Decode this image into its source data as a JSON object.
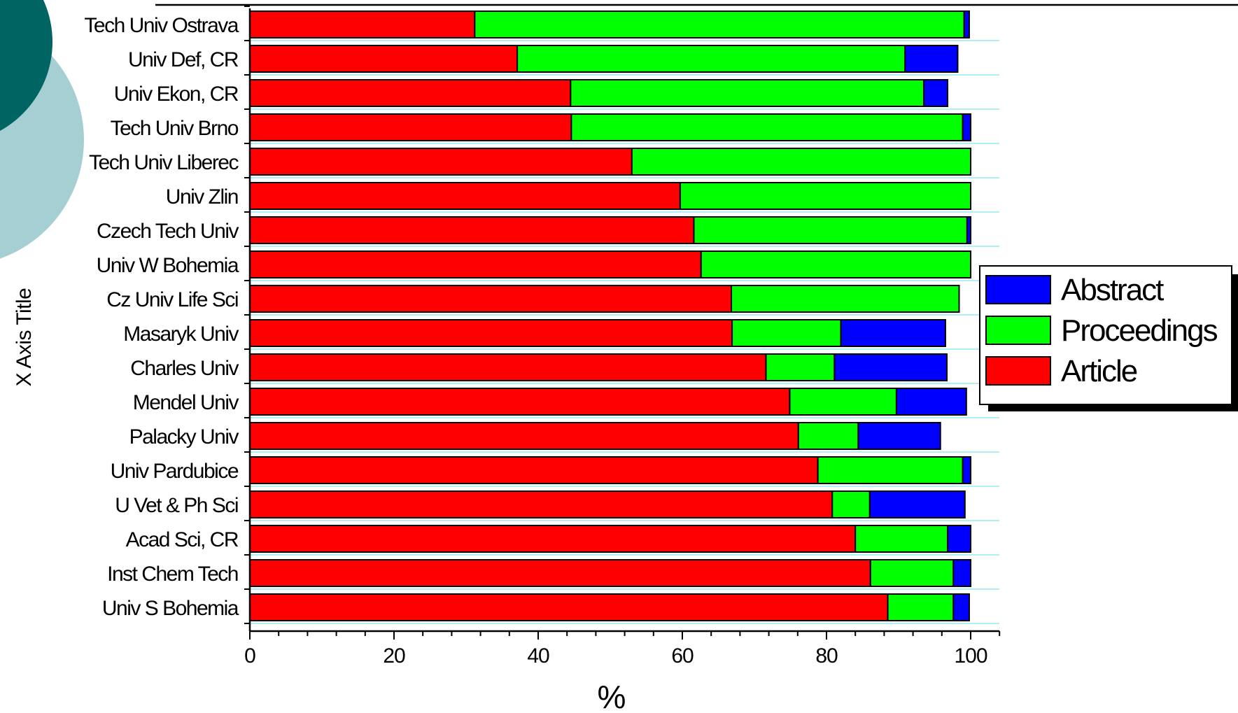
{
  "chart_data": {
    "type": "bar",
    "orientation": "horizontal",
    "stacked": true,
    "categories": [
      "Tech Univ Ostrava",
      "Univ Def, CR",
      "Univ Ekon, CR",
      "Tech Univ Brno",
      "Tech Univ Liberec",
      "Univ Zlin",
      "Czech Tech Univ",
      "Univ W Bohemia",
      "Cz Univ Life Sci",
      "Masaryk Univ",
      "Charles Univ",
      "Mendel Univ",
      "Palacky Univ",
      "Univ Pardubice",
      "U Vet & Ph Sci",
      "Acad Sci, CR",
      "Inst Chem Tech",
      "Univ S Bohemia"
    ],
    "series": [
      {
        "name": "Article",
        "color": "#ff0000",
        "values": [
          31.2,
          37.1,
          44.5,
          44.6,
          53.0,
          59.7,
          61.6,
          62.6,
          66.8,
          66.9,
          71.6,
          74.9,
          76.1,
          78.8,
          80.8,
          84.0,
          86.1,
          88.5
        ]
      },
      {
        "name": "Proceedings",
        "color": "#00ff00",
        "values": [
          67.9,
          53.8,
          49.0,
          54.3,
          47.0,
          40.3,
          37.9,
          37.4,
          31.6,
          15.1,
          9.5,
          14.8,
          8.3,
          20.1,
          5.2,
          12.8,
          11.5,
          9.1
        ]
      },
      {
        "name": "Abstract",
        "color": "#0000ff",
        "values": [
          0.7,
          7.3,
          3.3,
          1.1,
          0.0,
          0.0,
          0.5,
          0.0,
          0.0,
          14.5,
          15.6,
          9.7,
          11.4,
          1.1,
          13.2,
          3.2,
          2.4,
          2.2
        ]
      }
    ],
    "legend_order": [
      "Abstract",
      "Proceedings",
      "Article"
    ],
    "legend_position": "right",
    "xlim": [
      0,
      104
    ],
    "xticks": [
      0,
      20,
      40,
      60,
      80,
      100
    ],
    "xticks_labels": [
      "0",
      "20",
      "40",
      "60",
      "80",
      "100"
    ],
    "xlabel": "%",
    "ylabel": "X Axis Title",
    "grid": "horizontal"
  }
}
